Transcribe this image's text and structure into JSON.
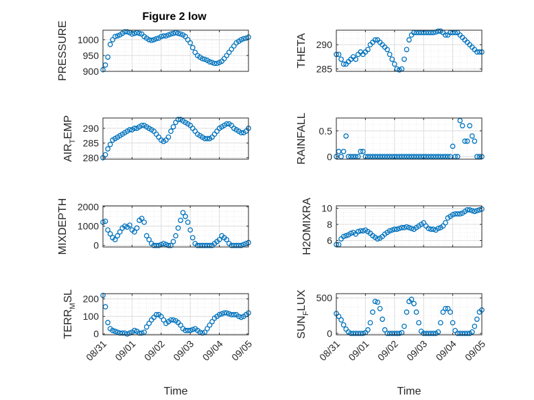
{
  "figure_title": "Figure 2 low",
  "colors": {
    "marker": "#0072BD",
    "axis": "#262626",
    "grid": "#d9d9d9",
    "background": "#ffffff"
  },
  "chart_data": [
    {
      "type": "scatter",
      "title": "Figure 2 low",
      "ylabel": "PRESSURE",
      "xlabel": "",
      "xlim": [
        "08/31",
        "09/05"
      ],
      "ylim": [
        900,
        1030
      ],
      "yticks": [
        "900",
        "950",
        "1000"
      ],
      "xticks": [],
      "grid": true,
      "marker": "circle",
      "x_start_date": "08/31 00:00",
      "x_step_hours": 2,
      "y": [
        905,
        920,
        945,
        985,
        1000,
        1010,
        1012,
        1015,
        1020,
        1025,
        1025,
        1022,
        1018,
        1020,
        1022,
        1020,
        1018,
        1010,
        1005,
        1000,
        998,
        1000,
        1003,
        1005,
        1010,
        1012,
        1012,
        1015,
        1018,
        1020,
        1022,
        1020,
        1018,
        1015,
        1010,
        1000,
        990,
        975,
        960,
        950,
        945,
        940,
        938,
        935,
        930,
        928,
        925,
        925,
        928,
        932,
        940,
        950,
        960,
        970,
        980,
        990,
        995,
        1000,
        1003,
        1005,
        1008,
        1008,
        1006,
        1005,
        1003,
        1000,
        1000,
        1000,
        1000
      ]
    },
    {
      "type": "scatter",
      "ylabel": "THETA",
      "xlabel": "",
      "xlim": [
        "08/31",
        "09/05"
      ],
      "ylim": [
        284.5,
        293
      ],
      "yticks": [
        "285",
        "290"
      ],
      "xticks": [],
      "grid": true,
      "marker": "circle",
      "x_start_date": "08/31 00:00",
      "x_step_hours": 2,
      "y": [
        288,
        288,
        287,
        286,
        286,
        286.5,
        287,
        287.5,
        287,
        288,
        288.5,
        288,
        288.5,
        289,
        290,
        290.5,
        291,
        291,
        290.5,
        290,
        289.5,
        289,
        288,
        287,
        286,
        285,
        284.8,
        285,
        287,
        289,
        291,
        292,
        292.5,
        292.5,
        292.5,
        292.5,
        292.5,
        292.5,
        292.5,
        292.5,
        292.5,
        292.6,
        292.8,
        292.8,
        292.5,
        292,
        292,
        292.5,
        292.5,
        292.5,
        292.5,
        292,
        291.5,
        291,
        290.5,
        290,
        289.5,
        289,
        288.5,
        288.5,
        288.5,
        289,
        290.5,
        292.2
      ]
    },
    {
      "type": "scatter",
      "ylabel": "AIR_TEMP",
      "ylabel_main": "AIR",
      "ylabel_sub": "T",
      "ylabel_rest": "EMP",
      "xlabel": "",
      "xlim": [
        "08/31",
        "09/05"
      ],
      "ylim": [
        279.5,
        293.5
      ],
      "yticks": [
        "280",
        "285",
        "290"
      ],
      "xticks": [],
      "grid": true,
      "marker": "circle",
      "x_start_date": "08/31 00:00",
      "x_step_hours": 2,
      "y": [
        280,
        281,
        283,
        284.5,
        286,
        286.5,
        287,
        287.5,
        288,
        288.5,
        289,
        289.5,
        289.5,
        290,
        290,
        290.5,
        291,
        291,
        290.5,
        290,
        289.5,
        289,
        288,
        287,
        286,
        285.5,
        286,
        287,
        289,
        290.5,
        292,
        293,
        293,
        292.5,
        292,
        291.5,
        291,
        290,
        289,
        288,
        287.5,
        287,
        286.5,
        286.5,
        286.5,
        287,
        288,
        289,
        290,
        290.5,
        291,
        291.5,
        291.5,
        291,
        290,
        289.5,
        289,
        288.5,
        288.5,
        289,
        290,
        291,
        292
      ]
    },
    {
      "type": "scatter",
      "ylabel": "RAINFALL",
      "xlabel": "",
      "xlim": [
        "08/31",
        "09/05"
      ],
      "ylim": [
        -0.05,
        0.75
      ],
      "yticks": [
        "0",
        "0.5"
      ],
      "xticks": [],
      "grid": true,
      "marker": "circle",
      "x_start_date": "08/31 00:00",
      "x_step_hours": 2,
      "y": [
        0,
        0.1,
        0,
        0.1,
        0.4,
        0,
        0,
        0,
        0,
        0,
        0.1,
        0.1,
        0,
        0,
        0,
        0,
        0,
        0,
        0,
        0,
        0,
        0,
        0,
        0,
        0,
        0,
        0,
        0,
        0,
        0,
        0,
        0,
        0,
        0,
        0,
        0,
        0,
        0,
        0,
        0,
        0,
        0,
        0,
        0,
        0,
        0,
        0,
        0,
        0.2,
        0,
        0,
        0.7,
        0.6,
        0.3,
        0.3,
        0.6,
        0.4,
        0.3,
        0,
        0,
        0,
        0,
        0,
        0,
        0,
        0,
        0,
        0,
        0
      ]
    },
    {
      "type": "scatter",
      "ylabel": "MIXDEPTH",
      "xlabel": "",
      "xlim": [
        "08/31",
        "09/05"
      ],
      "ylim": [
        -80,
        2050
      ],
      "yticks": [
        "0",
        "1000",
        "2000"
      ],
      "xticks": [],
      "grid": true,
      "marker": "circle",
      "x_start_date": "08/31 00:00",
      "x_step_hours": 2,
      "y": [
        1200,
        1250,
        800,
        600,
        400,
        300,
        500,
        700,
        900,
        1000,
        950,
        1050,
        800,
        700,
        900,
        1300,
        1400,
        1200,
        500,
        300,
        100,
        0,
        0,
        0,
        50,
        100,
        50,
        0,
        0,
        200,
        500,
        900,
        1300,
        1700,
        1500,
        1200,
        800,
        400,
        100,
        0,
        0,
        0,
        0,
        0,
        0,
        0,
        100,
        200,
        300,
        500,
        400,
        300,
        100,
        0,
        0,
        0,
        0,
        0,
        50,
        100,
        150,
        200,
        300,
        400,
        550
      ]
    },
    {
      "type": "scatter",
      "ylabel": "H2OMIXRA",
      "xlabel": "",
      "xlim": [
        "08/31",
        "09/05"
      ],
      "ylim": [
        5.2,
        10.3
      ],
      "yticks": [
        "6",
        "8",
        "10"
      ],
      "xticks": [],
      "grid": true,
      "marker": "circle",
      "x_start_date": "08/31 00:00",
      "x_step_hours": 2,
      "y": [
        5.5,
        5.5,
        6.2,
        6.5,
        6.6,
        6.7,
        6.9,
        7.0,
        6.8,
        7.1,
        7.2,
        7.2,
        7.3,
        7.1,
        6.9,
        6.6,
        6.4,
        6.2,
        6.3,
        6.5,
        6.8,
        7.0,
        7.2,
        7.3,
        7.4,
        7.4,
        7.5,
        7.6,
        7.6,
        7.7,
        7.6,
        7.5,
        7.4,
        7.6,
        7.8,
        8.0,
        8.2,
        7.8,
        7.5,
        7.4,
        7.4,
        7.3,
        7.5,
        7.6,
        7.8,
        8.2,
        8.8,
        9.0,
        9.2,
        9.3,
        9.3,
        9.3,
        9.4,
        9.6,
        9.8,
        9.8,
        9.7,
        9.6,
        9.7,
        9.8,
        9.9
      ]
    },
    {
      "type": "scatter",
      "ylabel": "TERR_MSL",
      "ylabel_main": "TERR",
      "ylabel_sub": "M",
      "ylabel_rest": "SL",
      "xlabel": "Time",
      "xlim": [
        "08/31",
        "09/05"
      ],
      "ylim": [
        -5,
        230
      ],
      "yticks": [
        "0",
        "100",
        "200"
      ],
      "xticks": [
        "08/31",
        "09/01",
        "09/02",
        "09/03",
        "09/04",
        "09/05"
      ],
      "grid": true,
      "marker": "circle",
      "x_start_date": "08/31 00:00",
      "x_step_hours": 2,
      "y": [
        220,
        155,
        65,
        30,
        20,
        15,
        10,
        5,
        5,
        5,
        0,
        5,
        10,
        20,
        15,
        5,
        5,
        10,
        40,
        60,
        80,
        95,
        110,
        110,
        100,
        80,
        60,
        70,
        80,
        80,
        75,
        65,
        50,
        30,
        20,
        20,
        20,
        25,
        30,
        20,
        10,
        5,
        10,
        30,
        50,
        70,
        90,
        100,
        110,
        115,
        120,
        120,
        115,
        110,
        110,
        110,
        100,
        95,
        100,
        110,
        120,
        130,
        140,
        145,
        145
      ]
    },
    {
      "type": "scatter",
      "ylabel": "SUN_FLUX",
      "ylabel_main": "SUN",
      "ylabel_sub": "F",
      "ylabel_rest": "LUX",
      "xlabel": "Time",
      "xlim": [
        "08/31",
        "09/05"
      ],
      "ylim": [
        -20,
        560
      ],
      "yticks": [
        "0",
        "500"
      ],
      "xticks": [
        "08/31",
        "09/01",
        "09/02",
        "09/03",
        "09/04",
        "09/05"
      ],
      "grid": true,
      "marker": "circle",
      "x_start_date": "08/31 00:00",
      "x_step_hours": 2,
      "y": [
        280,
        240,
        190,
        120,
        60,
        20,
        0,
        0,
        0,
        0,
        0,
        0,
        10,
        50,
        150,
        300,
        450,
        440,
        350,
        200,
        50,
        0,
        0,
        0,
        0,
        0,
        0,
        10,
        100,
        300,
        450,
        480,
        420,
        300,
        150,
        30,
        0,
        0,
        0,
        0,
        0,
        0,
        20,
        150,
        300,
        350,
        350,
        300,
        150,
        40,
        0,
        0,
        0,
        0,
        0,
        0,
        20,
        100,
        200,
        300,
        330
      ]
    }
  ]
}
